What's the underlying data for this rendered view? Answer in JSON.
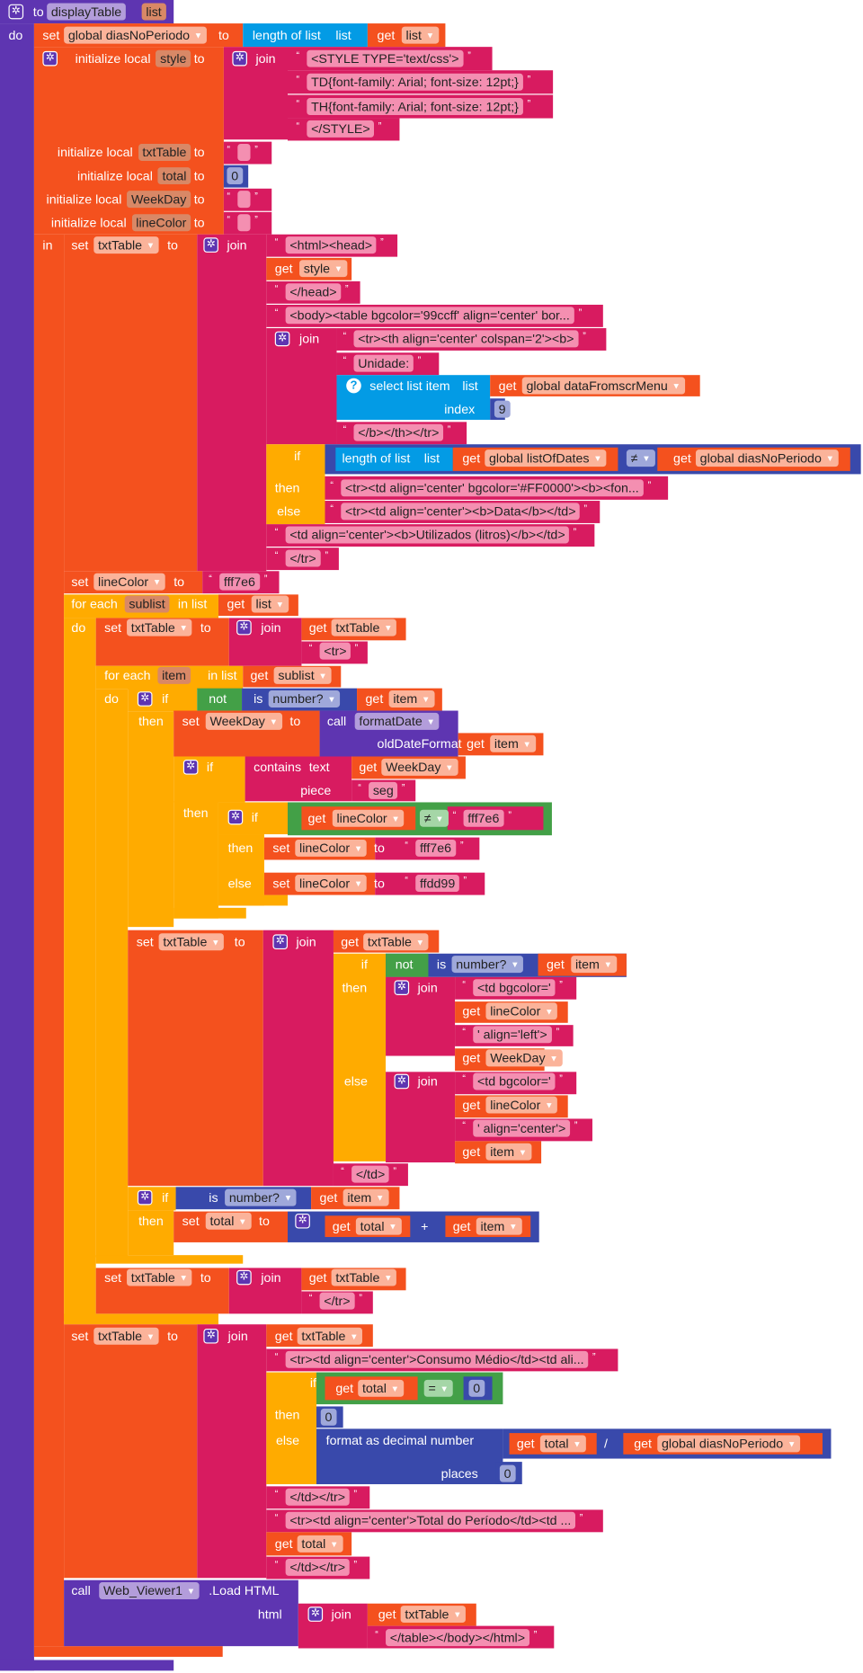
{
  "k": {
    "to": "to",
    "do": "do",
    "set": "set",
    "get": "get",
    "join": "join",
    "init": "initialize local",
    "in": "in",
    "if": "if",
    "then": "then",
    "else": "else",
    "foreach": "for each",
    "inlist": "in list",
    "len": "length of list",
    "list": "list",
    "sel": "select list item",
    "index": "index",
    "not": "not",
    "is": "is",
    "call": "call",
    "old": "oldDateFormat",
    "contains": "contains",
    "text": "text",
    "piece": "piece",
    "fmt": "format as decimal number",
    "places": "places",
    "plus": "+",
    "div": "/",
    "html": "html",
    "load": ".Load HTML",
    "neq": "≠",
    "eq": "="
  },
  "v": {
    "proc": "displayTable",
    "param": "list",
    "gdias": "global diasNoPeriodo",
    "style": "style",
    "txtTable": "txtTable",
    "total": "total",
    "WeekDay": "WeekDay",
    "lineColor": "lineColor",
    "sublist": "sublist",
    "item": "item",
    "list": "list",
    "gdata": "global dataFromscrMenu",
    "glist": "global listOfDates",
    "number": "number?",
    "formatDate": "formatDate",
    "webviewer": "Web_Viewer1"
  },
  "s": {
    "style_open": "<STYLE TYPE='text/css'>",
    "td_font": "TD{font-family: Arial; font-size: 12pt;}",
    "th_font": "TH{font-family: Arial; font-size: 12pt;}",
    "style_close": "</STYLE>",
    "empty": "",
    "html_head": "<html><head>",
    "head_close": "</head>",
    "body": "<body><table bgcolor='99ccff' align='center' bor...",
    "tr_th": "<tr><th align='center' colspan='2'><b>",
    "unidade": "Unidade:",
    "b_th_tr": "</b></th></tr>",
    "tr_red": "<tr><td align='center' bgcolor='#FF0000'><b><fon...",
    "tr_data": "<tr><td align='center'><b>Data</b></td>",
    "utilizados": "<td align='center'><b>Utilizados (litros)</b></td>",
    "tr_close": "</tr>",
    "fff7e6": "fff7e6",
    "tr": "<tr>",
    "seg": "seg",
    "ffdd99": "ffdd99",
    "td_bg": "<td bgcolor='",
    "align_left": "' align='left'>",
    "align_center": "' align='center'>",
    "td_close": "</td>",
    "consumo": "<tr><td align='center'>Consumo Médio</td><td ali...",
    "td_tr": "</td></tr>",
    "total_periodo": "<tr><td align='center'>Total do Período</td><td ...",
    "table_close": "</table></body></html>"
  },
  "n": {
    "zero": "0",
    "nine": "9"
  },
  "colors": {
    "procedure": "#5e35b1",
    "variable": "#f4511e",
    "text": "#d81b60",
    "list": "#039be5",
    "control": "#ffab00",
    "math": "#3949ab",
    "logic": "#43a047",
    "component": "#5e35b1"
  }
}
